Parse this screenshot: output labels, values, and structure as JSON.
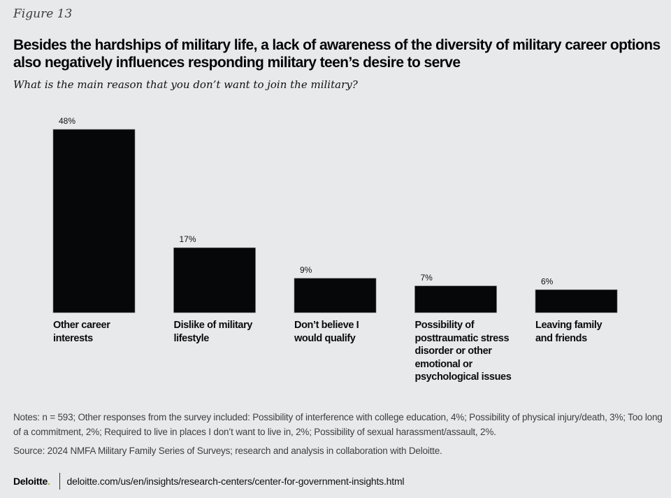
{
  "figure_label": "Figure 13",
  "title": "Besides the hardships of military life, a lack of awareness of the diversity of military career options also negatively influences responding military teen’s desire to serve",
  "subtitle": "What is the main reason that you don’t want to join the military?",
  "chart_data": {
    "type": "bar",
    "title": "Besides the hardships of military life, a lack of awareness of the diversity of military career options also negatively influences responding military teen’s desire to serve",
    "subtitle": "What is the main reason that you don’t want to join the military?",
    "categories": [
      "Other career interests",
      "Dislike of military lifestyle",
      "Don’t believe I would qualify",
      "Possibility of posttraumatic stress disorder or other emotional or psychological issues",
      "Leaving family and friends"
    ],
    "category_lines": [
      [
        "Other career",
        "interests"
      ],
      [
        "Dislike of military",
        "lifestyle"
      ],
      [
        "Don’t believe I",
        "would qualify"
      ],
      [
        "Possibility of",
        "posttraumatic stress",
        "disorder or other",
        "emotional or",
        "psychological issues"
      ],
      [
        "Leaving family",
        "and friends"
      ]
    ],
    "values": [
      48,
      17,
      9,
      7,
      6
    ],
    "data_labels": [
      "48%",
      "17%",
      "9%",
      "7%",
      "6%"
    ],
    "unit": "%",
    "xlabel": "",
    "ylabel": "",
    "ylim": [
      0,
      48
    ],
    "grid": false,
    "legend": "none",
    "bar_color": "#050709"
  },
  "notes": "Notes: n = 593; Other responses from the survey included: Possibility of interference with college education, 4%; Possibility of physical injury/death, 3%; Too long of a commitment, 2%; Required to live in places I don’t want to live in, 2%; Possibility of sexual harassment/assault, 2%.",
  "source": "Source: 2024 NMFA Military Family Series of Surveys; research and analysis in collaboration with Deloitte.",
  "footer": {
    "logo_text": "Deloitte",
    "logo_dot": ".",
    "logo_dot_color": "#86bc25",
    "url": "deloitte.com/us/en/insights/research-centers/center-for-government-insights.html"
  }
}
